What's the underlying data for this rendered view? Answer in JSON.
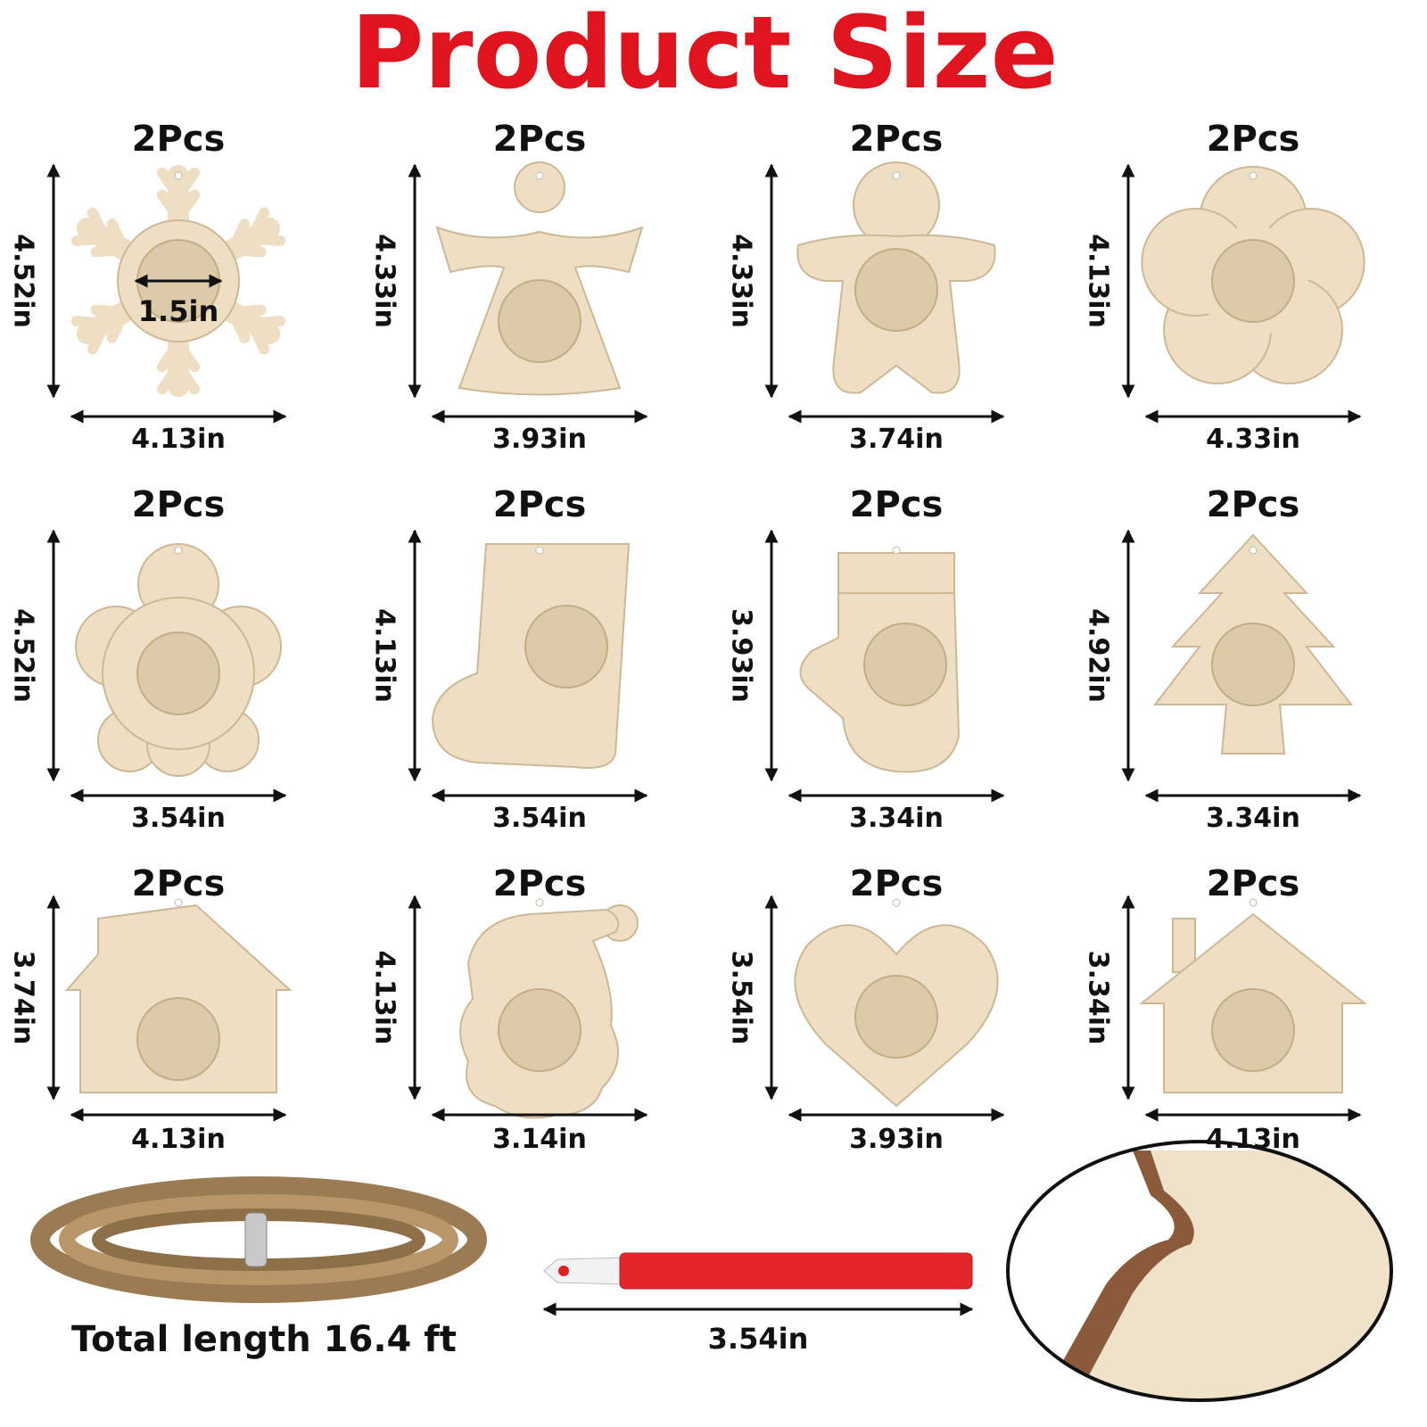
{
  "title": "Product Size",
  "items": [
    {
      "quantity": "2Pcs",
      "height": "4.52in",
      "width": "4.13in",
      "inner": "1.5in"
    },
    {
      "quantity": "2Pcs",
      "height": "4.33in",
      "width": "3.93in"
    },
    {
      "quantity": "2Pcs",
      "height": "4.33in",
      "width": "3.74in"
    },
    {
      "quantity": "2Pcs",
      "height": "4.13in",
      "width": "4.33in"
    },
    {
      "quantity": "2Pcs",
      "height": "4.52in",
      "width": "3.54in"
    },
    {
      "quantity": "2Pcs",
      "height": "4.13in",
      "width": "3.54in"
    },
    {
      "quantity": "2Pcs",
      "height": "3.93in",
      "width": "3.34in"
    },
    {
      "quantity": "2Pcs",
      "height": "4.92in",
      "width": "3.34in"
    },
    {
      "quantity": "2Pcs",
      "height": "3.74in",
      "width": "4.13in"
    },
    {
      "quantity": "2Pcs",
      "height": "4.13in",
      "width": "3.14in"
    },
    {
      "quantity": "2Pcs",
      "height": "3.54in",
      "width": "3.93in"
    },
    {
      "quantity": "2Pcs",
      "height": "3.34in",
      "width": "4.13in"
    }
  ],
  "twine": "Total length 16.4 ft",
  "pen_length": "3.54in"
}
